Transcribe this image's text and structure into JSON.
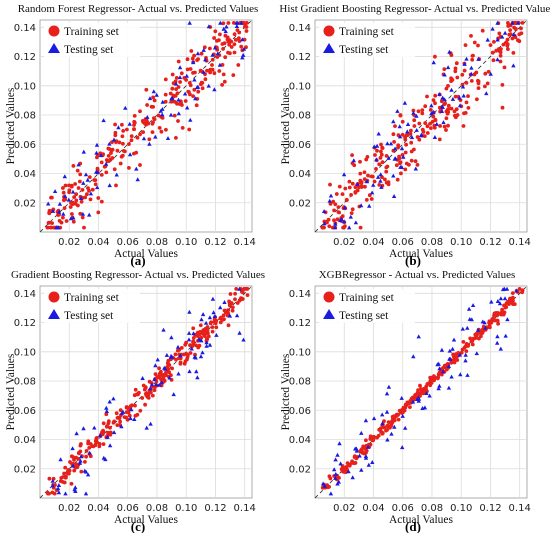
{
  "chart_data": [
    {
      "type": "scatter",
      "panel_label": "(a)",
      "title": "Random Forest Regressor- Actual vs. Predicted Values",
      "xlabel": "Actual Values",
      "ylabel": "Predicted Values",
      "xlim": [
        0.0,
        0.145
      ],
      "ylim": [
        0.0,
        0.145
      ],
      "xticks": [
        0.02,
        0.04,
        0.06,
        0.08,
        0.1,
        0.12,
        0.14
      ],
      "yticks": [
        0.02,
        0.04,
        0.06,
        0.08,
        0.1,
        0.12,
        0.14
      ],
      "legend_position": "top-left",
      "grid": true,
      "spread": {
        "train": 0.011,
        "test": 0.015
      },
      "series": [
        {
          "name": "Training set",
          "marker": "circle",
          "color": "#e8201b"
        },
        {
          "name": "Testing set",
          "marker": "triangle",
          "color": "#1a1ae0"
        }
      ],
      "reference_line": "y = x"
    },
    {
      "type": "scatter",
      "panel_label": "(b)",
      "title": "Hist Gradient Boosting Regressor- Actual vs. Predicted Values",
      "xlabel": "Actual Values",
      "ylabel": "Predicted Values",
      "xlim": [
        0.0,
        0.145
      ],
      "ylim": [
        0.0,
        0.145
      ],
      "xticks": [
        0.02,
        0.04,
        0.06,
        0.08,
        0.1,
        0.12,
        0.14
      ],
      "yticks": [
        0.02,
        0.04,
        0.06,
        0.08,
        0.1,
        0.12,
        0.14
      ],
      "legend_position": "top-left",
      "grid": true,
      "spread": {
        "train": 0.012,
        "test": 0.013
      },
      "series": [
        {
          "name": "Training set",
          "marker": "circle",
          "color": "#e8201b"
        },
        {
          "name": "Testing set",
          "marker": "triangle",
          "color": "#1a1ae0"
        }
      ],
      "reference_line": "y = x"
    },
    {
      "type": "scatter",
      "panel_label": "(c)",
      "title": "Gradient Boosting Regressor- Actual vs. Predicted Values",
      "xlabel": "Actual Values",
      "ylabel": "Predicted Values",
      "xlim": [
        0.0,
        0.145
      ],
      "ylim": [
        0.0,
        0.145
      ],
      "xticks": [
        0.02,
        0.04,
        0.06,
        0.08,
        0.1,
        0.12,
        0.14
      ],
      "yticks": [
        0.02,
        0.04,
        0.06,
        0.08,
        0.1,
        0.12,
        0.14
      ],
      "legend_position": "top-left",
      "grid": true,
      "spread": {
        "train": 0.004,
        "test": 0.013
      },
      "series": [
        {
          "name": "Training set",
          "marker": "circle",
          "color": "#e8201b"
        },
        {
          "name": "Testing set",
          "marker": "triangle",
          "color": "#1a1ae0"
        }
      ],
      "reference_line": "y = x"
    },
    {
      "type": "scatter",
      "panel_label": "(d)",
      "title": "XGBRegressor - Actual vs. Predicted Values",
      "xlabel": "Actual Values",
      "ylabel": "Predicted Values",
      "xlim": [
        0.0,
        0.145
      ],
      "ylim": [
        0.0,
        0.145
      ],
      "xticks": [
        0.02,
        0.04,
        0.06,
        0.08,
        0.1,
        0.12,
        0.14
      ],
      "yticks": [
        0.02,
        0.04,
        0.06,
        0.08,
        0.1,
        0.12,
        0.14
      ],
      "legend_position": "top-left",
      "grid": true,
      "spread": {
        "train": 0.002,
        "test": 0.012
      },
      "series": [
        {
          "name": "Training set",
          "marker": "circle",
          "color": "#e8201b"
        },
        {
          "name": "Testing set",
          "marker": "triangle",
          "color": "#1a1ae0"
        }
      ],
      "reference_line": "y = x"
    }
  ]
}
